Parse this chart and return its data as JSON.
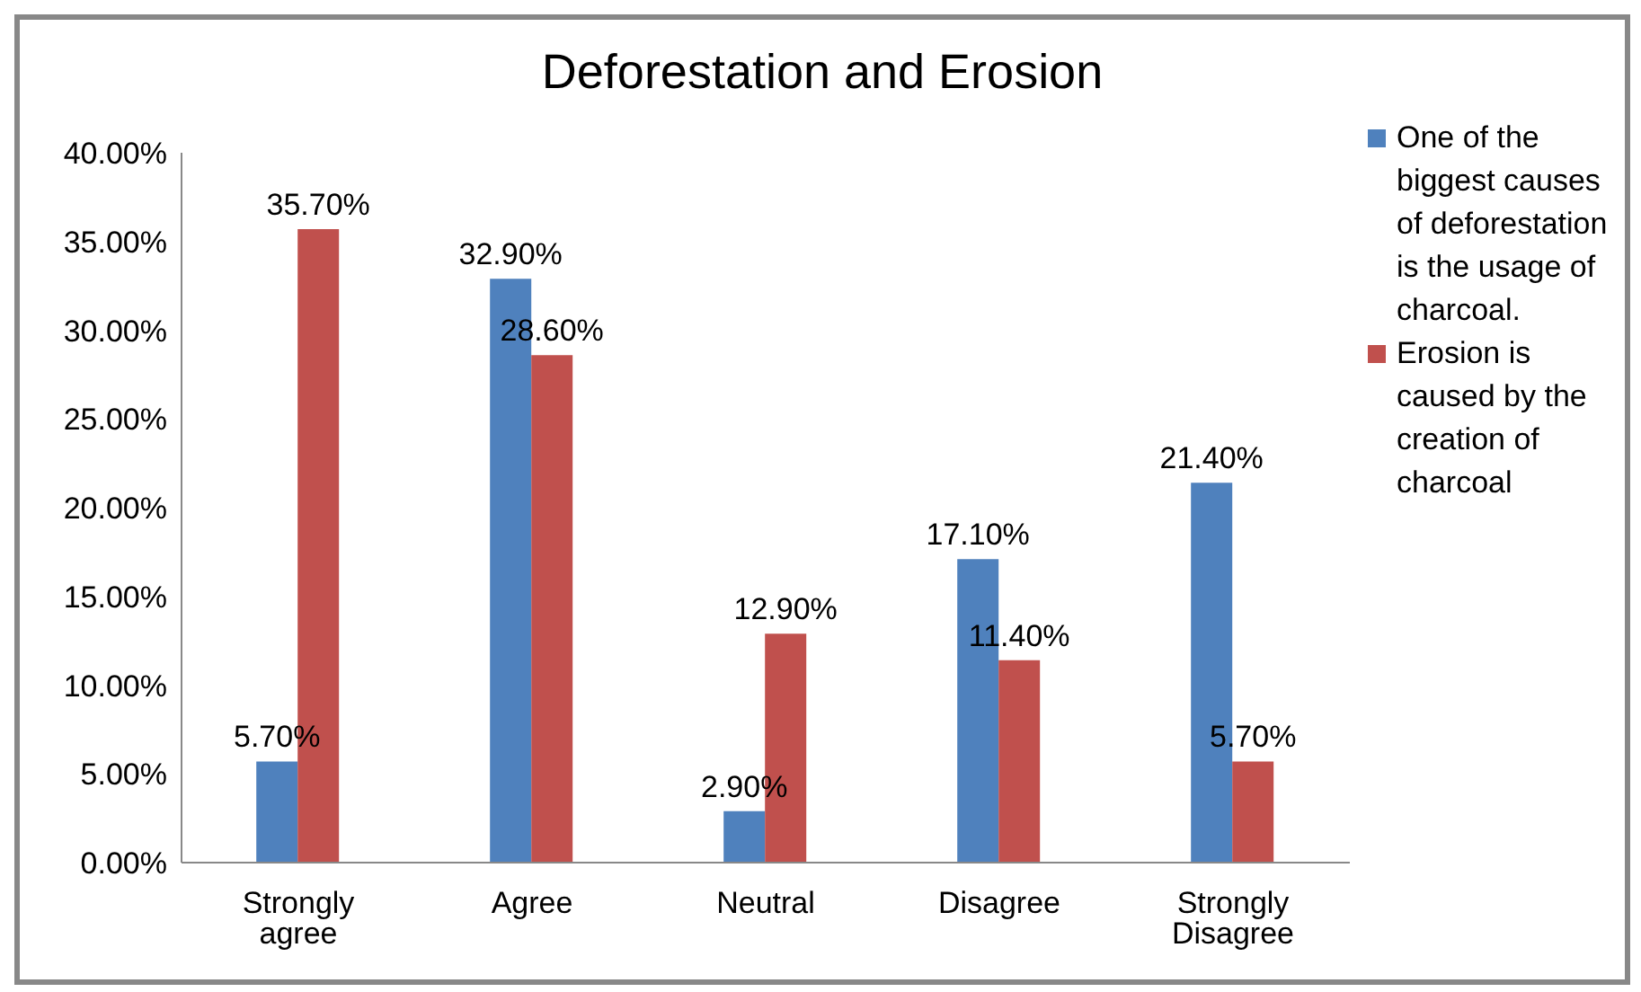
{
  "chart_data": {
    "type": "bar",
    "title": "Deforestation and Erosion",
    "categories": [
      "Strongly agree",
      "Agree",
      "Neutral",
      "Disagree",
      "Strongly Disagree"
    ],
    "series": [
      {
        "name": "One of the biggest causes of deforestation is the usage of charcoal.",
        "color": "#4f81bd",
        "values": [
          5.7,
          32.9,
          2.9,
          17.1,
          21.4
        ],
        "value_labels": [
          "5.70%",
          "32.90%",
          "2.90%",
          "17.10%",
          "21.40%"
        ]
      },
      {
        "name": "Erosion is caused by the creation of charcoal",
        "color": "#c0504d",
        "values": [
          35.7,
          28.6,
          12.9,
          11.4,
          5.7
        ],
        "value_labels": [
          "35.70%",
          "28.60%",
          "12.90%",
          "11.40%",
          "5.70%"
        ]
      }
    ],
    "ylim": [
      0,
      40
    ],
    "yticks": [
      {
        "value": 0,
        "label": "0.00%"
      },
      {
        "value": 5,
        "label": "5.00%"
      },
      {
        "value": 10,
        "label": "10.00%"
      },
      {
        "value": 15,
        "label": "15.00%"
      },
      {
        "value": 20,
        "label": "20.00%"
      },
      {
        "value": 25,
        "label": "25.00%"
      },
      {
        "value": 30,
        "label": "30.00%"
      },
      {
        "value": 35,
        "label": "35.00%"
      },
      {
        "value": 40,
        "label": "40.00%"
      }
    ],
    "grid": false,
    "legend": "right"
  }
}
